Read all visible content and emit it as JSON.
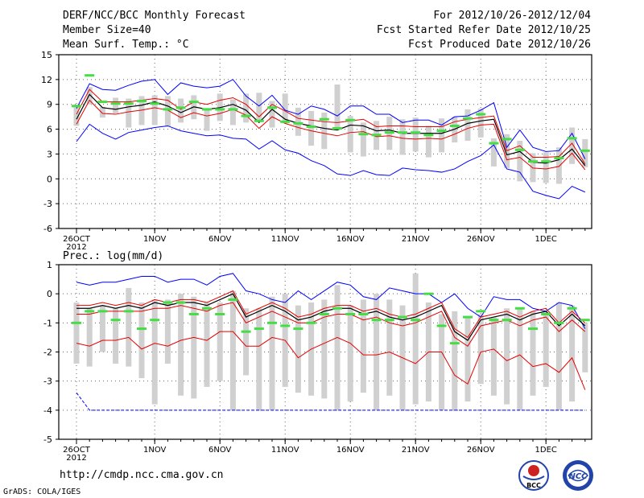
{
  "header": {
    "title": "DERF/NCC/BCC Monthly Forecast",
    "member_size": "Member Size=40",
    "variable": "Mean Surf. Temp.: °C",
    "period": "For 2012/10/26-2012/12/04",
    "start_date": "Fcst Started Refer Date 2012/10/25",
    "produced_date": "Fcst Produced Date 2012/10/26"
  },
  "footer": {
    "url": "http://cmdp.ncc.cma.gov.cn",
    "credit": "GrADS: COLA/IGES",
    "logo_bcc": "BCC",
    "logo_ncc": "NCC"
  },
  "colors": {
    "upper": "#0000ff",
    "ensemble": "#e60000",
    "mean": "#000000",
    "box": "#d0d0d0",
    "marker": "#44dd44"
  },
  "chart_data": [
    {
      "type": "line",
      "title": "Mean Surf. Temp.: °C",
      "ylim": [
        -6,
        15
      ],
      "yticks": [
        15,
        12,
        9,
        6,
        3,
        0,
        -3,
        -6
      ],
      "ytick_labels": [
        "15",
        "12",
        "9",
        "6",
        "3",
        "0",
        "-3",
        "-6"
      ],
      "xtick_days": [
        0,
        6,
        11,
        16,
        21,
        26,
        31,
        36
      ],
      "xtick_labels": [
        "26OCT",
        "1NOV",
        "6NOV",
        "11NOV",
        "16NOV",
        "21NOV",
        "26NOV",
        "1DEC"
      ],
      "year_label": "2012",
      "x_days": [
        0,
        1,
        2,
        3,
        4,
        5,
        6,
        7,
        8,
        9,
        10,
        11,
        12,
        13,
        14,
        15,
        16,
        17,
        18,
        19,
        20,
        21,
        22,
        23,
        24,
        25,
        26,
        27,
        28,
        29,
        30,
        31,
        32,
        33,
        34,
        35,
        36,
        37,
        38,
        39
      ],
      "series": [
        {
          "name": "max",
          "values": [
            8.5,
            11.5,
            10.8,
            10.7,
            11.3,
            11.8,
            12.0,
            10.2,
            11.6,
            11.2,
            11.0,
            11.2,
            12.0,
            10.0,
            8.8,
            10.1,
            8.3,
            7.8,
            8.8,
            8.4,
            7.6,
            8.8,
            8.8,
            7.8,
            7.8,
            6.8,
            7.1,
            7.1,
            6.5,
            7.5,
            7.6,
            8.3,
            9.2,
            3.8,
            5.9,
            3.8,
            3.3,
            3.4,
            5.5,
            2.4
          ]
        },
        {
          "name": "ens_high",
          "values": [
            7.8,
            10.8,
            9.3,
            9.3,
            9.3,
            9.5,
            9.7,
            9.5,
            8.4,
            9.3,
            9.0,
            9.5,
            9.8,
            9.0,
            7.5,
            9.0,
            8.2,
            7.3,
            7.1,
            6.9,
            6.8,
            7.0,
            7.2,
            6.3,
            6.4,
            6.4,
            6.3,
            6.3,
            6.3,
            6.9,
            7.2,
            7.4,
            7.6,
            3.4,
            4.0,
            2.6,
            2.6,
            2.7,
            4.3,
            1.8
          ]
        },
        {
          "name": "mean",
          "values": [
            7.2,
            10.2,
            8.6,
            8.4,
            8.7,
            8.9,
            9.3,
            8.8,
            8.0,
            8.7,
            8.4,
            8.6,
            9.0,
            8.3,
            6.8,
            8.4,
            7.2,
            6.7,
            6.4,
            6.1,
            5.9,
            6.5,
            6.4,
            5.8,
            5.9,
            5.5,
            5.5,
            5.5,
            5.5,
            6.0,
            6.7,
            7.0,
            7.2,
            2.9,
            3.3,
            2.0,
            1.9,
            2.3,
            3.6,
            1.6
          ]
        },
        {
          "name": "ens_low",
          "values": [
            6.6,
            9.5,
            7.9,
            7.8,
            8.1,
            8.3,
            8.6,
            8.3,
            7.4,
            8.0,
            7.6,
            7.9,
            8.4,
            7.7,
            6.1,
            7.5,
            6.7,
            6.2,
            5.8,
            5.5,
            5.2,
            5.6,
            5.7,
            5.1,
            5.2,
            4.9,
            4.8,
            4.9,
            4.8,
            5.4,
            6.1,
            6.5,
            6.6,
            2.3,
            2.6,
            1.3,
            1.2,
            1.5,
            3.1,
            1.1
          ]
        },
        {
          "name": "min",
          "values": [
            4.5,
            6.6,
            5.5,
            4.8,
            5.6,
            5.9,
            6.2,
            6.4,
            5.8,
            5.5,
            5.2,
            5.3,
            4.9,
            4.8,
            3.6,
            4.6,
            3.5,
            3.1,
            2.2,
            1.6,
            0.6,
            0.4,
            1.0,
            0.5,
            0.4,
            1.3,
            1.1,
            1.0,
            0.8,
            1.2,
            2.1,
            2.8,
            4.1,
            1.2,
            0.8,
            -1.5,
            -2.0,
            -2.4,
            -0.9,
            -1.6
          ]
        },
        {
          "name": "marker",
          "values": [
            8.8,
            12.5,
            9.3,
            9.1,
            9.1,
            9.4,
            9.1,
            8.4,
            8.6,
            9.3,
            8.4,
            8.4,
            8.4,
            7.6,
            7.0,
            8.6,
            6.9,
            6.7,
            6.3,
            7.2,
            6.1,
            7.1,
            5.4,
            5.3,
            5.6,
            5.6,
            5.6,
            5.3,
            5.8,
            6.4,
            7.3,
            7.8,
            4.3,
            4.8,
            3.5,
            2.1,
            2.1,
            2.5,
            4.9,
            3.4
          ]
        },
        {
          "name": "box_top",
          "values": [
            8.9,
            11.1,
            8.7,
            9.8,
            9.7,
            10.0,
            10.1,
            10.0,
            9.7,
            10.1,
            8.3,
            10.3,
            9.6,
            10.3,
            10.4,
            9.4,
            10.3,
            8.6,
            8.2,
            8.0,
            11.4,
            7.6,
            6.8,
            7.0,
            7.5,
            7.2,
            7.4,
            6.4,
            7.3,
            7.5,
            8.4,
            8.5,
            4.9,
            5.4,
            4.6,
            3.1,
            3.2,
            3.8,
            6.2,
            4.8
          ]
        },
        {
          "name": "box_bottom",
          "values": [
            6.4,
            9.0,
            7.4,
            7.9,
            6.2,
            6.5,
            6.5,
            6.3,
            6.8,
            7.2,
            5.8,
            7.0,
            6.5,
            6.8,
            7.0,
            6.2,
            6.7,
            5.2,
            4.0,
            3.6,
            6.2,
            3.2,
            2.7,
            3.5,
            3.5,
            2.9,
            3.3,
            2.6,
            3.2,
            4.4,
            4.6,
            5.0,
            1.5,
            1.3,
            -0.3,
            -0.4,
            -0.5,
            -0.6,
            1.8,
            1.4
          ]
        }
      ]
    },
    {
      "type": "line",
      "title": "Prec.: log(mm/d)",
      "ylim": [
        -5,
        1
      ],
      "yticks": [
        1,
        0,
        -1,
        -2,
        -3,
        -4,
        -5
      ],
      "ytick_labels": [
        "1",
        "0",
        "-1",
        "-2",
        "-3",
        "-4",
        "-5"
      ],
      "xtick_days": [
        0,
        6,
        11,
        16,
        21,
        26,
        31,
        36
      ],
      "xtick_labels": [
        "26OCT",
        "1NOV",
        "6NOV",
        "11NOV",
        "16NOV",
        "21NOV",
        "26NOV",
        "1DEC"
      ],
      "year_label": "2012",
      "x_days": [
        0,
        1,
        2,
        3,
        4,
        5,
        6,
        7,
        8,
        9,
        10,
        11,
        12,
        13,
        14,
        15,
        16,
        17,
        18,
        19,
        20,
        21,
        22,
        23,
        24,
        25,
        26,
        27,
        28,
        29,
        30,
        31,
        32,
        33,
        34,
        35,
        36,
        37,
        38,
        39
      ],
      "series": [
        {
          "name": "max",
          "values": [
            0.4,
            0.3,
            0.4,
            0.4,
            0.5,
            0.6,
            0.6,
            0.4,
            0.5,
            0.5,
            0.3,
            0.6,
            0.7,
            0.1,
            0.0,
            -0.2,
            -0.3,
            0.1,
            -0.2,
            0.1,
            0.4,
            0.3,
            -0.1,
            -0.2,
            0.2,
            0.1,
            0.0,
            0.0,
            -0.3,
            0.0,
            -0.5,
            -0.8,
            -0.1,
            -0.2,
            -0.2,
            -0.5,
            -0.6,
            -0.3,
            -0.4,
            -1.2
          ]
        },
        {
          "name": "ens_high",
          "values": [
            -0.4,
            -0.4,
            -0.3,
            -0.4,
            -0.3,
            -0.4,
            -0.2,
            -0.3,
            -0.2,
            -0.2,
            -0.3,
            -0.1,
            0.1,
            -0.7,
            -0.5,
            -0.3,
            -0.5,
            -0.8,
            -0.7,
            -0.5,
            -0.4,
            -0.4,
            -0.6,
            -0.5,
            -0.7,
            -0.8,
            -0.7,
            -0.5,
            -0.3,
            -1.2,
            -1.5,
            -0.8,
            -0.7,
            -0.6,
            -0.8,
            -0.6,
            -0.5,
            -1.0,
            -0.6,
            -1.0
          ]
        },
        {
          "name": "mean",
          "values": [
            -0.5,
            -0.5,
            -0.4,
            -0.5,
            -0.4,
            -0.5,
            -0.3,
            -0.4,
            -0.3,
            -0.3,
            -0.4,
            -0.2,
            0.0,
            -0.8,
            -0.6,
            -0.4,
            -0.6,
            -0.9,
            -0.8,
            -0.6,
            -0.5,
            -0.5,
            -0.7,
            -0.6,
            -0.8,
            -0.9,
            -0.8,
            -0.6,
            -0.4,
            -1.3,
            -1.6,
            -0.9,
            -0.8,
            -0.7,
            -0.9,
            -0.7,
            -0.6,
            -1.1,
            -0.7,
            -1.1
          ]
        },
        {
          "name": "ens_low",
          "values": [
            -0.7,
            -0.7,
            -0.6,
            -0.6,
            -0.6,
            -0.6,
            -0.5,
            -0.5,
            -0.4,
            -0.5,
            -0.6,
            -0.4,
            -0.3,
            -1.0,
            -0.8,
            -0.6,
            -0.8,
            -1.0,
            -1.0,
            -0.8,
            -0.7,
            -0.7,
            -0.9,
            -0.8,
            -1.0,
            -1.1,
            -1.0,
            -0.8,
            -0.6,
            -1.5,
            -1.8,
            -1.1,
            -1.0,
            -0.9,
            -1.1,
            -0.9,
            -0.8,
            -1.3,
            -0.9,
            -1.3
          ]
        },
        {
          "name": "min",
          "values": [
            -1.7,
            -1.8,
            -1.6,
            -1.6,
            -1.5,
            -1.9,
            -1.7,
            -1.8,
            -1.6,
            -1.5,
            -1.6,
            -1.3,
            -1.3,
            -1.8,
            -1.8,
            -1.5,
            -1.6,
            -2.2,
            -1.9,
            -1.7,
            -1.5,
            -1.7,
            -2.1,
            -2.1,
            -2.0,
            -2.2,
            -2.4,
            -2.0,
            -2.0,
            -2.8,
            -3.1,
            -2.0,
            -1.9,
            -2.3,
            -2.1,
            -2.5,
            -2.4,
            -2.7,
            -2.2,
            -3.3
          ]
        },
        {
          "name": "bottom",
          "values": [
            -3.4,
            -4.0,
            -4.0,
            -4.0,
            -4.0,
            -4.0,
            -4.0,
            -4.0,
            -4.0,
            -4.0,
            -4.0,
            -4.0,
            -4.0,
            -4.0,
            -4.0,
            -4.0,
            -4.0,
            -4.0,
            -4.0,
            -4.0,
            -4.0,
            -4.0,
            -4.0,
            -4.0,
            -4.0,
            -4.0,
            -4.0,
            -4.0,
            -4.0,
            -4.0,
            -4.0,
            -4.0,
            -4.0,
            -4.0,
            -4.0,
            -4.0,
            -4.0,
            -4.0,
            -4.0,
            -4.0
          ]
        },
        {
          "name": "marker",
          "values": [
            -1.0,
            -0.6,
            -0.6,
            -0.9,
            -0.6,
            -1.2,
            -0.9,
            -0.3,
            -0.3,
            -0.7,
            -0.5,
            -0.7,
            -0.2,
            -1.3,
            -1.2,
            -1.0,
            -1.1,
            -1.2,
            -1.0,
            -0.7,
            -0.5,
            -0.7,
            -0.7,
            -0.9,
            -0.9,
            -0.8,
            -0.9,
            0.0,
            -1.1,
            -1.7,
            -0.8,
            -0.6,
            -0.9,
            -0.9,
            -0.5,
            -1.2,
            -0.7,
            -1.0,
            -0.5,
            -0.9
          ]
        },
        {
          "name": "box_top",
          "values": [
            -0.3,
            -0.5,
            -0.4,
            -0.5,
            0.2,
            -0.3,
            -0.2,
            -0.2,
            0.0,
            -0.1,
            -0.3,
            -0.3,
            0.1,
            -0.5,
            -0.5,
            -0.1,
            0.0,
            -0.4,
            -0.3,
            -0.2,
            0.3,
            -0.4,
            -0.2,
            0.0,
            -0.2,
            -0.4,
            0.7,
            -0.3,
            -0.7,
            -0.6,
            -0.8,
            -0.7,
            -0.8,
            -0.5,
            -0.5,
            -0.6,
            -0.6,
            -0.3,
            -0.4,
            -1.0
          ]
        },
        {
          "name": "box_bottom",
          "values": [
            -2.4,
            -2.5,
            -2.0,
            -2.4,
            -2.5,
            -2.9,
            -3.8,
            -2.4,
            -3.5,
            -3.6,
            -3.2,
            -3.0,
            -4.0,
            -2.8,
            -4.0,
            -4.0,
            -3.2,
            -3.4,
            -3.5,
            -3.6,
            -4.0,
            -3.7,
            -3.4,
            -4.0,
            -3.5,
            -4.0,
            -3.8,
            -3.7,
            -4.0,
            -4.0,
            -3.7,
            -3.1,
            -3.5,
            -3.8,
            -4.0,
            -3.5,
            -3.2,
            -4.0,
            -3.7,
            -2.7
          ]
        }
      ]
    }
  ]
}
